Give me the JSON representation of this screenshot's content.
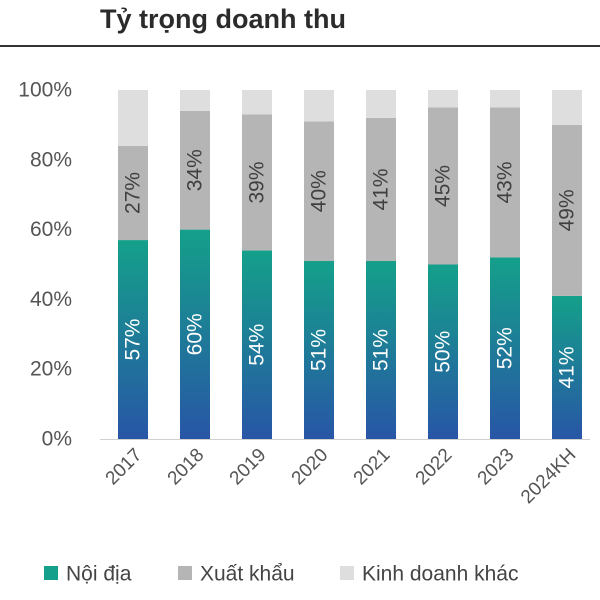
{
  "chart_data": {
    "type": "bar",
    "stacked": true,
    "title": "Tỷ trọng doanh thu",
    "categories": [
      "2017",
      "2018",
      "2019",
      "2020",
      "2021",
      "2022",
      "2023",
      "2024KH"
    ],
    "series": [
      {
        "name": "Nội địa",
        "values": [
          57,
          60,
          54,
          51,
          51,
          50,
          52,
          41
        ],
        "labels": [
          "57%",
          "60%",
          "54%",
          "51%",
          "51%",
          "50%",
          "52%",
          "41%"
        ]
      },
      {
        "name": "Xuất khẩu",
        "values": [
          27,
          34,
          39,
          40,
          41,
          45,
          43,
          49
        ],
        "labels": [
          "27%",
          "34%",
          "39%",
          "40%",
          "41%",
          "45%",
          "43%",
          "49%"
        ]
      },
      {
        "name": "Kinh doanh khác",
        "values": [
          16,
          6,
          7,
          9,
          8,
          5,
          5,
          10
        ]
      }
    ],
    "ylim": [
      0,
      100
    ],
    "yticks": [
      "0%",
      "20%",
      "40%",
      "60%",
      "80%",
      "100%"
    ],
    "grid": false,
    "legend": "bottom",
    "colors": {
      "domestic_top": "#14a08a",
      "domestic_bottom": "#2856a6",
      "export": "#b5b5b5",
      "other": "#dedede",
      "axis_text": "#555555",
      "label_dark": "#404040",
      "label_light": "#ffffff"
    }
  }
}
